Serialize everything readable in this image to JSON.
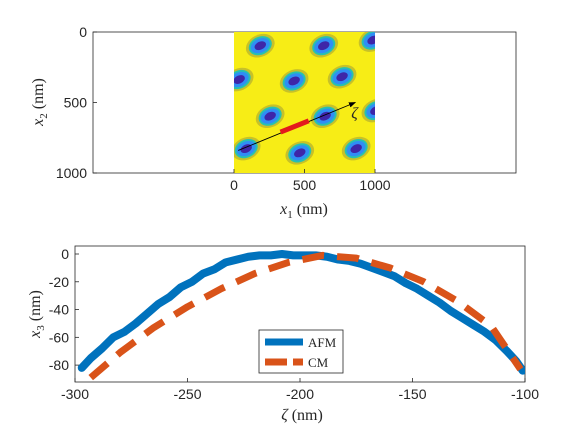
{
  "chart_data": [
    {
      "type": "heatmap",
      "xlabel": {
        "var": "x",
        "sub": "1",
        "unit": " (nm)"
      },
      "ylabel": {
        "var": "x",
        "sub": "2",
        "unit": " (nm)"
      },
      "xlim": [
        -1000,
        2000
      ],
      "ylim": [
        0,
        1000
      ],
      "y_reversed": true,
      "xticks": [
        0,
        500,
        1000
      ],
      "yticks": [
        0,
        500,
        1000
      ],
      "grid": false,
      "colormap": [
        "#3e26a8",
        "#2f8ef5",
        "#28c0b0",
        "#c7c129",
        "#f9fb0e"
      ],
      "image_extent": {
        "x": [
          0,
          1000
        ],
        "y": [
          0,
          1000
        ]
      },
      "wells": [
        {
          "x": 180,
          "y": 100
        },
        {
          "x": 630,
          "y": 100
        },
        {
          "x": 980,
          "y": 60
        },
        {
          "x": 30,
          "y": 340
        },
        {
          "x": 420,
          "y": 350
        },
        {
          "x": 760,
          "y": 320
        },
        {
          "x": 250,
          "y": 600
        },
        {
          "x": 640,
          "y": 600
        },
        {
          "x": 1000,
          "y": 560
        },
        {
          "x": 80,
          "y": 830
        },
        {
          "x": 460,
          "y": 860
        },
        {
          "x": 860,
          "y": 830
        }
      ],
      "arrow": {
        "from": [
          30,
          840
        ],
        "to": [
          860,
          500
        ],
        "label": "ζ",
        "color": "#000000"
      },
      "segment": {
        "from": [
          330,
          710
        ],
        "to": [
          530,
          630
        ],
        "color": "#e31a1c"
      }
    },
    {
      "type": "line",
      "xlabel": {
        "var": "ζ",
        "unit": " (nm)"
      },
      "ylabel": {
        "var": "x",
        "sub": "3",
        "unit": " (nm)"
      },
      "xlim": [
        -300,
        -100
      ],
      "ylim": [
        -90,
        0
      ],
      "xticks": [
        -300,
        -250,
        -200,
        -150,
        -100
      ],
      "yticks": [
        0,
        -20,
        -40,
        -60,
        -80
      ],
      "grid": false,
      "legend_position": "bottom-center",
      "series": [
        {
          "name": "AFM",
          "color": "#0072bd",
          "style": "solid",
          "x": [
            -297,
            -293,
            -288,
            -283,
            -278,
            -273,
            -268,
            -263,
            -258,
            -253,
            -248,
            -243,
            -238,
            -233,
            -228,
            -223,
            -218,
            -213,
            -208,
            -203,
            -198,
            -193,
            -188,
            -183,
            -178,
            -173,
            -168,
            -163,
            -158,
            -153,
            -148,
            -143,
            -138,
            -133,
            -128,
            -123,
            -118,
            -113,
            -108,
            -104,
            -101
          ],
          "y": [
            -82,
            -75,
            -68,
            -60,
            -56,
            -50,
            -43,
            -36,
            -31,
            -24,
            -20,
            -14,
            -11,
            -6,
            -4,
            -2,
            -1,
            -1,
            0,
            -1,
            -1,
            -1,
            -2,
            -4,
            -5,
            -7,
            -10,
            -13,
            -16,
            -21,
            -25,
            -30,
            -35,
            -41,
            -46,
            -51,
            -56,
            -62,
            -70,
            -77,
            -84
          ]
        },
        {
          "name": "CM",
          "color": "#d95319",
          "style": "dashed",
          "x": [
            -293,
            -280,
            -265,
            -250,
            -235,
            -220,
            -205,
            -190,
            -175,
            -160,
            -145,
            -130,
            -115,
            -102
          ],
          "y": [
            -89,
            -71,
            -53,
            -38,
            -25,
            -14,
            -6,
            -1,
            -3,
            -10,
            -20,
            -34,
            -52,
            -83
          ]
        }
      ]
    }
  ]
}
